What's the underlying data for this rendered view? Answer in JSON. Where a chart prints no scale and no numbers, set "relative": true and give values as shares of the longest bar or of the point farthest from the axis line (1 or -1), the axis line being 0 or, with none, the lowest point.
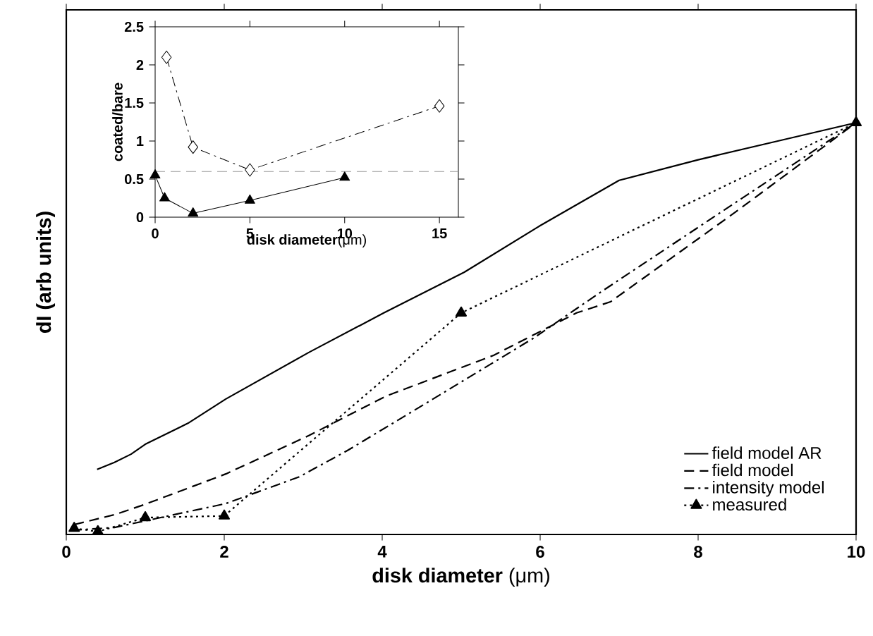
{
  "chart_data": [
    {
      "type": "line",
      "relative": true,
      "xlabel": "**disk diameter** (μm)",
      "ylabel": "dI (arb units)",
      "xlim": [
        0,
        10
      ],
      "xticks": [
        0,
        2,
        4,
        6,
        8,
        10
      ],
      "tick_labels": "x",
      "legend": "bottom right",
      "series": [
        {
          "name": "field model AR",
          "color": "#000000",
          "line_style": "solid",
          "marker": "none",
          "x": [
            0.39,
            0.61,
            0.82,
            1.0,
            1.54,
            2.02,
            3.07,
            4.02,
            5.04,
            6.0,
            7.0,
            8.0,
            9.0,
            10
          ],
          "values": [
            0.158,
            0.175,
            0.195,
            0.219,
            0.27,
            0.329,
            0.442,
            0.538,
            0.637,
            0.75,
            0.86,
            0.91,
            0.955,
            1.0
          ]
        },
        {
          "name": "field model",
          "color": "#000000",
          "line_style": "dashed",
          "marker": "none",
          "x": [
            0.1,
            0.61,
            0.98,
            2.02,
            3.07,
            3.68,
            4.05,
            5.41,
            6.46,
            6.89,
            8.48,
            10
          ],
          "values": [
            0.024,
            0.048,
            0.072,
            0.147,
            0.24,
            0.3,
            0.336,
            0.435,
            0.538,
            0.565,
            0.784,
            1.0
          ]
        },
        {
          "name": "intensity model",
          "color": "#000000",
          "line_style": "dashdot",
          "marker": "none",
          "x": [
            0.07,
            0.61,
            2.02,
            2.95,
            3.57,
            4.61,
            5.91,
            6.77,
            8.3,
            10
          ],
          "values": [
            0.01,
            0.017,
            0.075,
            0.14,
            0.205,
            0.325,
            0.476,
            0.589,
            0.784,
            1.0
          ]
        },
        {
          "name": "measured",
          "color": "#000000",
          "line_style": "dotted",
          "marker": "triangle",
          "x": [
            0.1,
            0.4,
            1,
            2,
            5,
            10
          ],
          "values": [
            0.015,
            0.007,
            0.041,
            0.045,
            0.538,
            1.0
          ]
        }
      ]
    },
    {
      "type": "line",
      "xlabel": "**disk diameter**(μm)",
      "ylabel": "coated/bare",
      "xlim": [
        0,
        16
      ],
      "ylim": [
        0,
        2.5
      ],
      "xticks": [
        0,
        5,
        10,
        15
      ],
      "yticks": [
        0,
        0.5,
        1,
        1.5,
        2,
        2.5
      ],
      "ref_lines": [
        {
          "axis": "y",
          "value": 0.6,
          "color": "#999999",
          "line_style": "dashed"
        }
      ],
      "series": [
        {
          "color": "#000000",
          "line_style": "dashdot",
          "marker": "diamond",
          "x": [
            0.6,
            2,
            5,
            15
          ],
          "values": [
            2.1,
            0.92,
            0.62,
            1.46
          ]
        },
        {
          "color": "#000000",
          "line_style": "solid",
          "marker": "triangle",
          "x": [
            0,
            0.5,
            2,
            5,
            10
          ],
          "values": [
            0.55,
            0.25,
            0.05,
            0.22,
            0.52
          ]
        }
      ]
    }
  ]
}
